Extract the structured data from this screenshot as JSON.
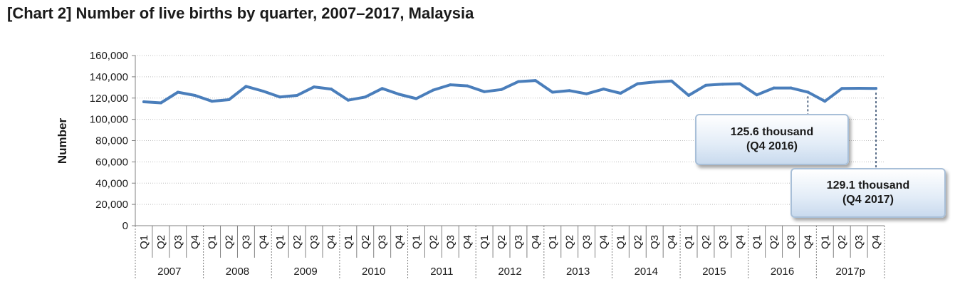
{
  "title": "[Chart 2] Number of live births by quarter, 2007–2017, Malaysia",
  "chart_data": {
    "type": "line",
    "title": "[Chart 2] Number of live births by quarter, 2007–2017, Malaysia",
    "xlabel": "",
    "ylabel": "Number",
    "ylim": [
      0,
      160000
    ],
    "yticks": [
      "0",
      "20,000",
      "40,000",
      "60,000",
      "80,000",
      "100,000",
      "120,000",
      "140,000",
      "160,000"
    ],
    "quarters": [
      "Q1",
      "Q2",
      "Q3",
      "Q4"
    ],
    "years": [
      "2007",
      "2008",
      "2009",
      "2010",
      "2011",
      "2012",
      "2013",
      "2014",
      "2015",
      "2016",
      "2017p"
    ],
    "grid": "horizontal",
    "series_color": "#4a7ebb",
    "series": [
      {
        "values": [
          116500,
          115500,
          125500,
          122500,
          117000,
          118500,
          131000,
          126500,
          121000,
          122500,
          130500,
          128500,
          118000,
          121000,
          129000,
          123500,
          119500,
          127500,
          132500,
          131500,
          126000,
          128000,
          135500,
          136500,
          125500,
          127000,
          124000,
          128500,
          124500,
          133500,
          135000,
          136000,
          122500,
          132000,
          133000,
          133500,
          123000,
          129500,
          129500,
          125600,
          117000,
          129000,
          129200,
          129100
        ]
      }
    ],
    "annotations": [
      {
        "text_line1": "125.6 thousand",
        "text_line2": "(Q4 2016)",
        "year": "2016",
        "quarter": "Q4",
        "value": 125600
      },
      {
        "text_line1": "129.1 thousand",
        "text_line2": "(Q4 2017)",
        "year": "2017p",
        "quarter": "Q4",
        "value": 129100
      }
    ]
  }
}
